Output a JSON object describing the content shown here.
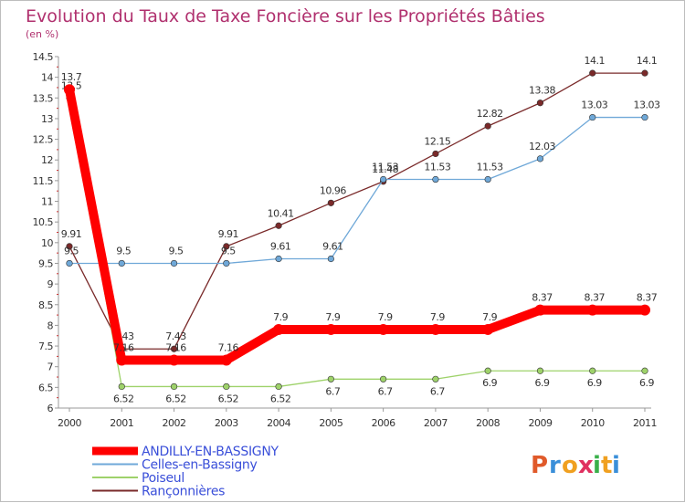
{
  "chart_data": {
    "type": "line",
    "title": "Evolution du Taux de Taxe Foncière sur les Propriétés Bâties",
    "subtitle": "(en %)",
    "xlabel": "",
    "ylabel": "",
    "x": [
      "2000",
      "2001",
      "2002",
      "2003",
      "2004",
      "2005",
      "2006",
      "2007",
      "2008",
      "2009",
      "2010",
      "2011"
    ],
    "ylim": [
      6,
      14.5
    ],
    "yticks": [
      "6",
      "6.5",
      "7",
      "7.5",
      "8",
      "8.5",
      "9",
      "9.5",
      "10",
      "10.5",
      "11",
      "11.5",
      "12",
      "12.5",
      "13",
      "13.5",
      "14",
      "14.5"
    ],
    "grid": false,
    "legend": "bottom-left",
    "series": [
      {
        "name": "Rançonnières",
        "color": "#7a2a2a",
        "values": [
          9.91,
          7.43,
          7.43,
          9.91,
          10.41,
          10.96,
          11.48,
          12.15,
          12.82,
          13.38,
          14.1,
          14.1
        ],
        "labels": [
          "9.91",
          "7.43",
          "7.43",
          "9.91",
          "10.41",
          "10.96",
          "11.48",
          "12.15",
          "12.82",
          "13.38",
          "14.1",
          "14.1"
        ]
      },
      {
        "name": "Celles-en-Bassigny",
        "color": "#6fa8d8",
        "values": [
          9.5,
          9.5,
          9.5,
          9.5,
          9.61,
          9.61,
          11.53,
          11.53,
          11.53,
          12.03,
          13.03,
          13.03
        ],
        "labels": [
          "9.5",
          "9.5",
          "9.5",
          "9.5",
          "9.61",
          "9.61",
          "11.53",
          "11.53",
          "11.53",
          "12.03",
          "13.03",
          "13.03"
        ]
      },
      {
        "name": "Poiseul",
        "color": "#9ed26a",
        "values": [
          13.5,
          6.52,
          6.52,
          6.52,
          6.52,
          6.7,
          6.7,
          6.7,
          6.9,
          6.9,
          6.9,
          6.9
        ],
        "labels": [
          "13.5",
          "6.52",
          "6.52",
          "6.52",
          "6.52",
          "6.7",
          "6.7",
          "6.7",
          "6.9",
          "6.9",
          "6.9",
          "6.9"
        ]
      },
      {
        "name": "ANDILLY-EN-BASSIGNY",
        "color": "#ff0000",
        "values": [
          13.7,
          7.16,
          7.16,
          7.16,
          7.9,
          7.9,
          7.9,
          7.9,
          7.9,
          8.37,
          8.37,
          8.37
        ],
        "labels": [
          "13.7",
          "7.16",
          "7.16",
          "7.16",
          "7.9",
          "7.9",
          "7.9",
          "7.9",
          "7.9",
          "8.37",
          "8.37",
          "8.37"
        ]
      }
    ],
    "legend_order": [
      "ANDILLY-EN-BASSIGNY",
      "Celles-en-Bassigny",
      "Poiseul",
      "Rançonnières"
    ]
  },
  "logo": {
    "letters": [
      "P",
      "r",
      "o",
      "x",
      "i",
      "t",
      "i"
    ],
    "colors": [
      "#e05a2a",
      "#3a8fd9",
      "#f0a020",
      "#e03060",
      "#3ab04a",
      "#f0a020",
      "#3a8fd9"
    ]
  }
}
